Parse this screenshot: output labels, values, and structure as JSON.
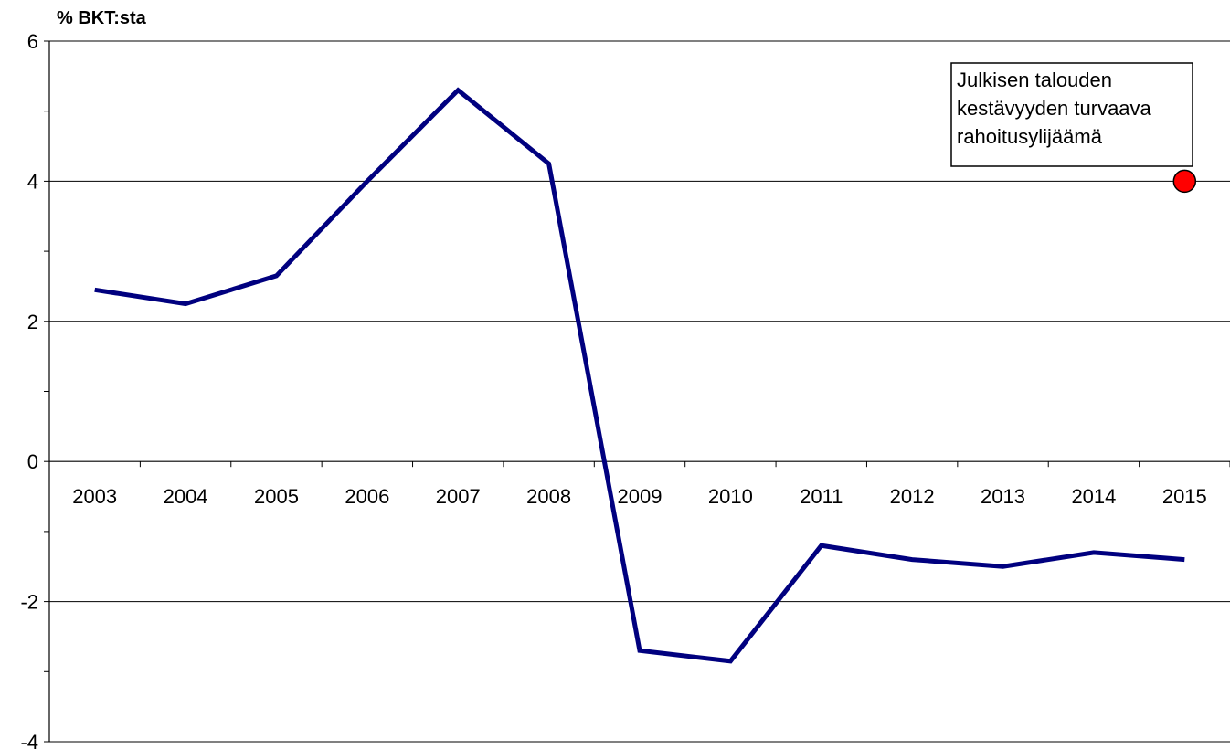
{
  "chart_data": {
    "type": "line",
    "title": "",
    "ylabel": "% BKT:sta",
    "xlabel": "",
    "ylim": [
      -4,
      6
    ],
    "yticks": [
      -4,
      -2,
      0,
      2,
      4,
      6
    ],
    "grid": true,
    "categories": [
      "2003",
      "2004",
      "2005",
      "2006",
      "2007",
      "2008",
      "2009",
      "2010",
      "2011",
      "2012",
      "2013",
      "2014",
      "2015"
    ],
    "series": [
      {
        "values": [
          2.45,
          2.25,
          2.65,
          4.0,
          5.3,
          4.25,
          -2.7,
          -2.85,
          -1.2,
          -1.4,
          -1.5,
          -1.3,
          -1.4
        ],
        "color": "#00007f"
      }
    ],
    "target_point": {
      "category": "2015",
      "value": 4.0,
      "color": "#ff0000"
    },
    "annotation": {
      "lines": [
        "Julkisen talouden",
        "kestävyyden turvaava",
        "rahoitusylijäämä"
      ]
    }
  }
}
